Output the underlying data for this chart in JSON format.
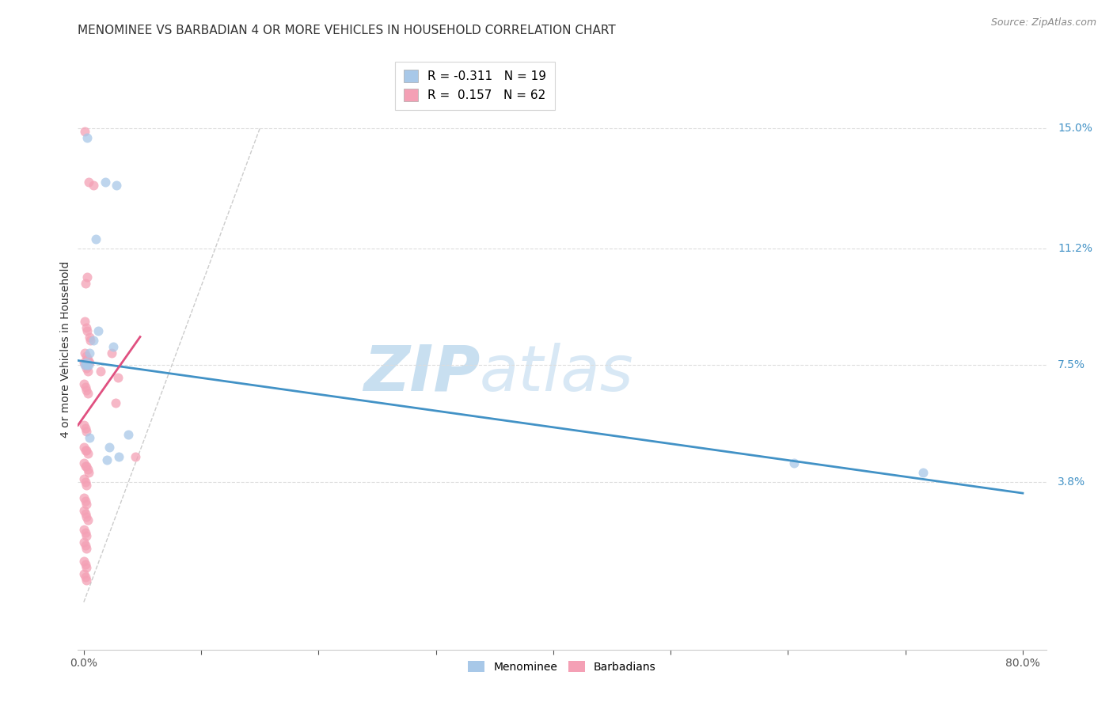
{
  "title": "MENOMINEE VS BARBADIAN 4 OR MORE VEHICLES IN HOUSEHOLD CORRELATION CHART",
  "source": "Source: ZipAtlas.com",
  "xlabel_vals": [
    0.0,
    10.0,
    20.0,
    30.0,
    40.0,
    50.0,
    60.0,
    70.0,
    80.0
  ],
  "xlabel_show": [
    0.0,
    80.0
  ],
  "ylabel": "4 or more Vehicles in Household",
  "ytick_labels": [
    "15.0%",
    "11.2%",
    "7.5%",
    "3.8%"
  ],
  "ytick_vals": [
    15.0,
    11.2,
    7.5,
    3.8
  ],
  "xlim": [
    -0.5,
    82.0
  ],
  "ylim": [
    -1.5,
    17.5
  ],
  "watermark_zip": "ZIP",
  "watermark_atlas": "atlas",
  "legend_entries": [
    {
      "label": "R = -0.311   N = 19",
      "color": "#a8c8e8"
    },
    {
      "label": "R =  0.157   N = 62",
      "color": "#f4a0b5"
    }
  ],
  "menominee_scatter": [
    [
      0.3,
      14.7
    ],
    [
      1.8,
      13.3
    ],
    [
      2.8,
      13.2
    ],
    [
      1.0,
      11.5
    ],
    [
      1.2,
      8.6
    ],
    [
      0.8,
      8.3
    ],
    [
      2.5,
      8.1
    ],
    [
      0.5,
      7.9
    ],
    [
      0.2,
      7.6
    ],
    [
      0.1,
      7.5
    ],
    [
      0.3,
      7.5
    ],
    [
      0.4,
      7.5
    ],
    [
      0.5,
      5.2
    ],
    [
      2.2,
      4.9
    ],
    [
      3.8,
      5.3
    ],
    [
      3.0,
      4.6
    ],
    [
      2.0,
      4.5
    ],
    [
      60.5,
      4.4
    ],
    [
      71.5,
      4.1
    ]
  ],
  "barbadian_scatter": [
    [
      0.05,
      14.9
    ],
    [
      0.4,
      13.3
    ],
    [
      0.8,
      13.2
    ],
    [
      0.25,
      10.3
    ],
    [
      0.15,
      10.1
    ],
    [
      0.08,
      8.9
    ],
    [
      0.18,
      8.7
    ],
    [
      0.28,
      8.6
    ],
    [
      0.45,
      8.4
    ],
    [
      0.55,
      8.3
    ],
    [
      0.08,
      7.9
    ],
    [
      0.18,
      7.8
    ],
    [
      0.28,
      7.7
    ],
    [
      0.38,
      7.7
    ],
    [
      0.48,
      7.6
    ],
    [
      0.02,
      7.6
    ],
    [
      0.12,
      7.5
    ],
    [
      0.22,
      7.4
    ],
    [
      0.38,
      7.3
    ],
    [
      0.02,
      6.9
    ],
    [
      0.12,
      6.8
    ],
    [
      0.22,
      6.7
    ],
    [
      0.32,
      6.6
    ],
    [
      0.02,
      5.6
    ],
    [
      0.12,
      5.5
    ],
    [
      0.22,
      5.4
    ],
    [
      0.02,
      4.9
    ],
    [
      0.12,
      4.8
    ],
    [
      0.22,
      4.8
    ],
    [
      0.32,
      4.7
    ],
    [
      0.02,
      4.4
    ],
    [
      0.12,
      4.3
    ],
    [
      0.22,
      4.3
    ],
    [
      0.32,
      4.2
    ],
    [
      0.42,
      4.1
    ],
    [
      0.02,
      3.9
    ],
    [
      0.12,
      3.8
    ],
    [
      0.22,
      3.7
    ],
    [
      0.02,
      3.3
    ],
    [
      0.12,
      3.2
    ],
    [
      0.22,
      3.1
    ],
    [
      0.02,
      2.9
    ],
    [
      0.12,
      2.8
    ],
    [
      0.22,
      2.7
    ],
    [
      0.32,
      2.6
    ],
    [
      0.02,
      2.3
    ],
    [
      0.12,
      2.2
    ],
    [
      0.22,
      2.1
    ],
    [
      0.02,
      1.9
    ],
    [
      0.12,
      1.8
    ],
    [
      0.22,
      1.7
    ],
    [
      0.02,
      1.3
    ],
    [
      0.12,
      1.2
    ],
    [
      0.22,
      1.1
    ],
    [
      0.02,
      0.9
    ],
    [
      0.12,
      0.8
    ],
    [
      0.22,
      0.7
    ],
    [
      1.4,
      7.3
    ],
    [
      2.4,
      7.9
    ],
    [
      2.9,
      7.1
    ],
    [
      2.7,
      6.3
    ],
    [
      4.4,
      4.6
    ]
  ],
  "menominee_line": {
    "x0": -0.5,
    "y0": 7.65,
    "x1": 80.0,
    "y1": 3.45
  },
  "barbadian_line": {
    "x0": -0.5,
    "y0": 5.6,
    "x1": 4.8,
    "y1": 8.4
  },
  "diagonal_line": {
    "x0": 0.0,
    "y0": 0.0,
    "x1": 15.0,
    "y1": 15.0
  },
  "menominee_color": "#a8c8e8",
  "barbadian_color": "#f4a0b5",
  "menominee_line_color": "#4292c6",
  "barbadian_line_color": "#e05080",
  "grid_color": "#dddddd",
  "background_color": "#ffffff",
  "title_fontsize": 11,
  "axis_label_fontsize": 10,
  "tick_fontsize": 10,
  "legend_fontsize": 11,
  "marker_size": 75,
  "bottom_legend_labels": [
    "Menominee",
    "Barbadians"
  ]
}
